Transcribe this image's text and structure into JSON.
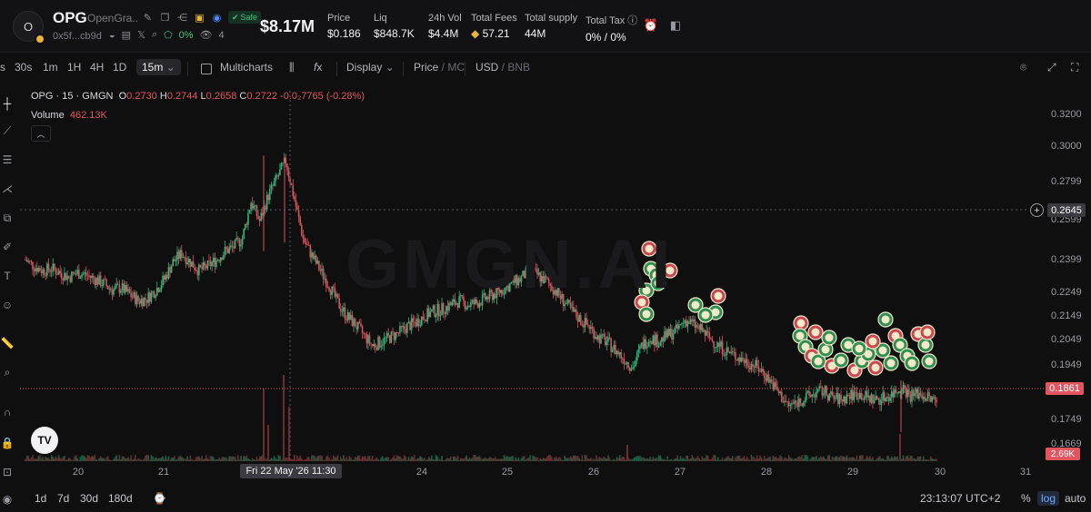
{
  "header": {
    "avatar_letter": "O",
    "symbol": "OPG",
    "name": "OpenGra...",
    "safe_label": "Safe",
    "address": "0x5f...cb9d",
    "holders_change": "0%",
    "watchers": "4",
    "market_cap": "$8.17M",
    "stats": [
      {
        "label": "Price",
        "value": "$0.186"
      },
      {
        "label": "Liq",
        "value": "$848.7K"
      },
      {
        "label": "24h Vol",
        "value": "$4.4M"
      },
      {
        "label": "Total Fees",
        "value": "57.21"
      },
      {
        "label": "Total supply",
        "value": "44M"
      },
      {
        "label": "Total Tax",
        "value": "0% / 0%"
      }
    ]
  },
  "toolbar": {
    "intervals": [
      "s",
      "30s",
      "1m",
      "1H",
      "4H",
      "1D"
    ],
    "active_interval": "15m",
    "multicharts": "Multicharts",
    "display": "Display",
    "price_label": "Price",
    "mc_label": "MC",
    "usd_label": "USD",
    "bnb_label": "BNB"
  },
  "legend": {
    "title": "OPG · 15 · GMGN",
    "o_label": "O",
    "o_value": "0.2730",
    "h_label": "H",
    "h_value": "0.2744",
    "l_label": "L",
    "l_value": "0.2658",
    "c_label": "C",
    "c_value": "0.2722",
    "change": "-0.0₂7765 (-0.28%)",
    "volume_label": "Volume",
    "volume_value": "462.13K"
  },
  "watermark": "GMGN.AI",
  "tv_logo": "TV",
  "chart_data": {
    "type": "candlestick",
    "price_axis_ticks": [
      "0.3200",
      "0.3000",
      "0.2799",
      "0.2599",
      "0.2399",
      "0.2249",
      "0.2149",
      "0.2049",
      "0.1949",
      "0.1749",
      "0.1669"
    ],
    "x_ticks": [
      "20",
      "21",
      "24",
      "25",
      "26",
      "27",
      "28",
      "29",
      "30",
      "31"
    ],
    "current_price_label": "0.1861",
    "crosshair_price_label": "0.2645",
    "crosshair_time_label": "Fri 22 May '26   11:30",
    "volume_label": "2.69K",
    "close_series": [
      0.252,
      0.249,
      0.247,
      0.248,
      0.246,
      0.244,
      0.246,
      0.245,
      0.243,
      0.241,
      0.238,
      0.239,
      0.236,
      0.233,
      0.234,
      0.238,
      0.243,
      0.251,
      0.255,
      0.251,
      0.247,
      0.249,
      0.252,
      0.256,
      0.258,
      0.262,
      0.279,
      0.27,
      0.282,
      0.29,
      0.298,
      0.28,
      0.262,
      0.254,
      0.247,
      0.24,
      0.232,
      0.226,
      0.222,
      0.217,
      0.212,
      0.214,
      0.216,
      0.218,
      0.221,
      0.223,
      0.226,
      0.228,
      0.229,
      0.231,
      0.233,
      0.231,
      0.232,
      0.234,
      0.236,
      0.238,
      0.241,
      0.243,
      0.247,
      0.245,
      0.242,
      0.238,
      0.233,
      0.228,
      0.224,
      0.221,
      0.216,
      0.214,
      0.21,
      0.206,
      0.202,
      0.212,
      0.216,
      0.214,
      0.217,
      0.219,
      0.224,
      0.222,
      0.219,
      0.215,
      0.212,
      0.209,
      0.207,
      0.205,
      0.203,
      0.2,
      0.195,
      0.189,
      0.184,
      0.186,
      0.188,
      0.19,
      0.191,
      0.188,
      0.187,
      0.189,
      0.19,
      0.188,
      0.187,
      0.188,
      0.19,
      0.193,
      0.189,
      0.19,
      0.188,
      0.186
    ]
  },
  "bottombar": {
    "ranges": [
      "1d",
      "7d",
      "30d",
      "180d"
    ],
    "clock": "23:13:07 UTC+2",
    "percent": "%",
    "log": "log",
    "auto": "auto"
  }
}
